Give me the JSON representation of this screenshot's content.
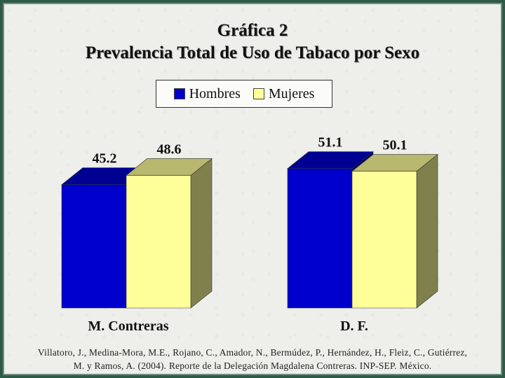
{
  "header": {
    "title_line1": "Gráfica 2",
    "title_line2": "Prevalencia Total de Uso de Tabaco por Sexo"
  },
  "legend": {
    "items": [
      {
        "label": "Hombres",
        "color": "#0000cc"
      },
      {
        "label": "Mujeres",
        "color": "#ffff99"
      }
    ]
  },
  "chart_data": {
    "type": "bar",
    "title": "Gráfica 2 Prevalencia Total de Uso de Tabaco por Sexo",
    "categories": [
      "M. Contreras",
      "D. F."
    ],
    "series": [
      {
        "name": "Hombres",
        "values": [
          45.2,
          51.1
        ],
        "labels": [
          "45.2",
          "51.1"
        ],
        "color": "#0000cc"
      },
      {
        "name": "Mujeres",
        "values": [
          48.6,
          50.1
        ],
        "labels": [
          "48.6",
          "50.1"
        ],
        "color": "#ffff99"
      }
    ],
    "three_d": true,
    "legend_position": "top-center",
    "grid": false
  },
  "citation": {
    "line1": "Villatoro, J., Medina-Mora, M.E., Rojano, C., Amador, N., Bermúdez, P., Hernández, H., Fleiz, C., Gutiérrez,",
    "line2": "M. y Ramos, A. (2004). Reporte de la Delegación Magdalena Contreras. INP-SEP. México."
  }
}
